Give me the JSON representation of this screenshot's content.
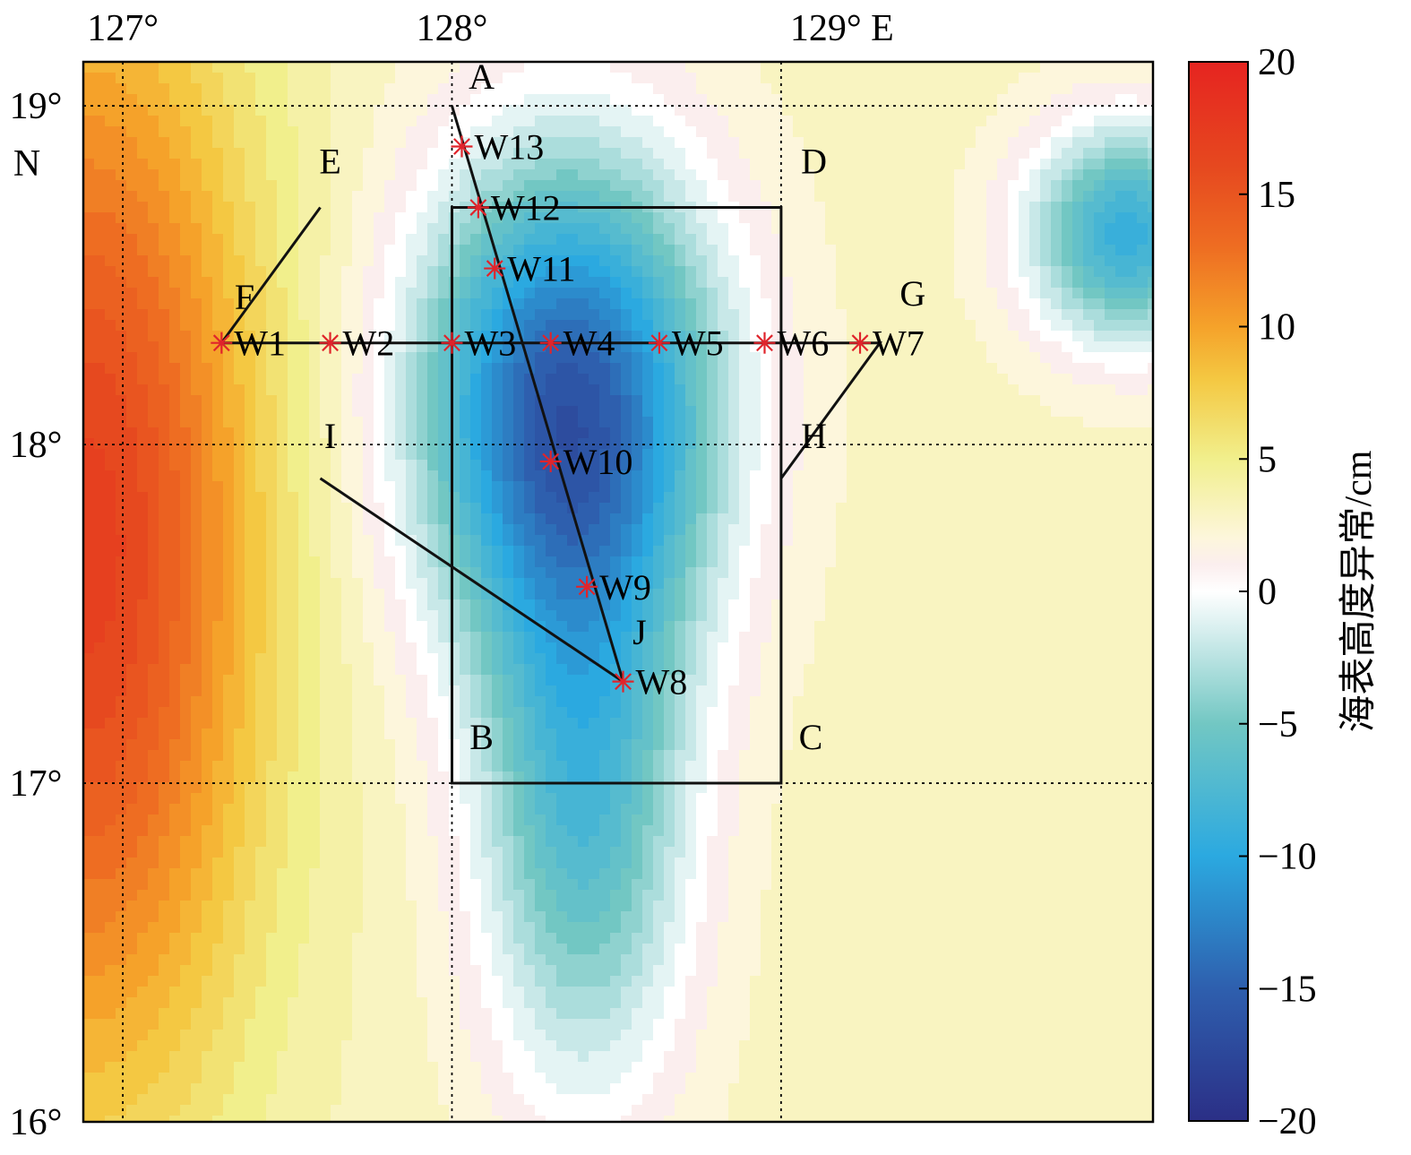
{
  "map": {
    "lon_range": [
      126.88,
      130.13
    ],
    "lat_range": [
      16.0,
      19.13
    ],
    "lon_ticks": [
      {
        "value": 127,
        "label": "127°"
      },
      {
        "value": 128,
        "label": "128°"
      },
      {
        "value": 129,
        "label": "129° E"
      }
    ],
    "lat_ticks": [
      {
        "value": 16,
        "label": "16°"
      },
      {
        "value": 17,
        "label": "17°"
      },
      {
        "value": 18,
        "label": "18°"
      },
      {
        "value": 19,
        "label": "19°"
      }
    ],
    "lat_hemisphere_label": "N",
    "grid": "dotted",
    "field": {
      "variable": "sea surface height anomaly",
      "units": "cm",
      "background_value": 3,
      "features": [
        {
          "kind": "low",
          "lon": 128.35,
          "lat": 18.12,
          "amplitude": -18,
          "sx": 0.45,
          "sy": 0.72
        },
        {
          "kind": "low",
          "lon": 128.4,
          "lat": 16.95,
          "amplitude": -10,
          "sx": 0.32,
          "sy": 0.85
        },
        {
          "kind": "low",
          "lon": 130.05,
          "lat": 18.62,
          "amplitude": -12,
          "sx": 0.3,
          "sy": 0.32
        },
        {
          "kind": "high",
          "lon": 126.9,
          "lat": 17.7,
          "amplitude": 14,
          "sx": 0.5,
          "sy": 1.6
        }
      ]
    },
    "stations": [
      {
        "name": "W1",
        "lon": 127.3,
        "lat": 18.3
      },
      {
        "name": "W2",
        "lon": 127.63,
        "lat": 18.3
      },
      {
        "name": "W3",
        "lon": 128.0,
        "lat": 18.3
      },
      {
        "name": "W4",
        "lon": 128.3,
        "lat": 18.3
      },
      {
        "name": "W5",
        "lon": 128.63,
        "lat": 18.3
      },
      {
        "name": "W6",
        "lon": 128.95,
        "lat": 18.3
      },
      {
        "name": "W7",
        "lon": 129.24,
        "lat": 18.3
      },
      {
        "name": "W8",
        "lon": 128.52,
        "lat": 17.3
      },
      {
        "name": "W9",
        "lon": 128.41,
        "lat": 17.58
      },
      {
        "name": "W10",
        "lon": 128.3,
        "lat": 17.95
      },
      {
        "name": "W11",
        "lon": 128.13,
        "lat": 18.52
      },
      {
        "name": "W12",
        "lon": 128.08,
        "lat": 18.7
      },
      {
        "name": "W13",
        "lon": 128.03,
        "lat": 18.88
      }
    ],
    "boxes": [
      {
        "name": "ABCD",
        "corners": [
          [
            128.0,
            18.7
          ],
          [
            128.0,
            17.0
          ],
          [
            129.0,
            17.0
          ],
          [
            129.0,
            18.7
          ]
        ]
      },
      {
        "name": "EFGH",
        "corners": [
          [
            127.6,
            18.7
          ],
          [
            127.3,
            18.3
          ],
          [
            129.3,
            18.3
          ],
          [
            129.0,
            17.9
          ]
        ]
      },
      {
        "name": "IJ",
        "corners": [
          [
            127.6,
            17.9
          ],
          [
            128.52,
            17.3
          ]
        ]
      }
    ],
    "section_line": {
      "from": [
        128.0,
        19.0
      ],
      "to": [
        128.52,
        17.3
      ]
    },
    "point_labels": [
      {
        "text": "A",
        "lon": 128.09,
        "lat": 19.05
      },
      {
        "text": "B",
        "lon": 128.09,
        "lat": 17.1
      },
      {
        "text": "C",
        "lon": 129.09,
        "lat": 17.1
      },
      {
        "text": "D",
        "lon": 129.1,
        "lat": 18.8
      },
      {
        "text": "E",
        "lon": 127.63,
        "lat": 18.8
      },
      {
        "text": "F",
        "lon": 127.37,
        "lat": 18.4
      },
      {
        "text": "G",
        "lon": 129.4,
        "lat": 18.41
      },
      {
        "text": "H",
        "lon": 129.1,
        "lat": 17.99
      },
      {
        "text": "I",
        "lon": 127.63,
        "lat": 17.99
      },
      {
        "text": "J",
        "lon": 128.57,
        "lat": 17.41
      }
    ],
    "colors": {
      "station_marker": "#e0242b",
      "lines": "#111111"
    }
  },
  "colorbar": {
    "title": "海表高度异常/cm",
    "min": -20,
    "max": 20,
    "ticks": [
      {
        "value": 20,
        "label": "20"
      },
      {
        "value": 15,
        "label": "15"
      },
      {
        "value": 10,
        "label": "10"
      },
      {
        "value": 5,
        "label": "5"
      },
      {
        "value": 0,
        "label": "0"
      },
      {
        "value": -5,
        "label": "−5"
      },
      {
        "value": -10,
        "label": "−10"
      },
      {
        "value": -15,
        "label": "−15"
      },
      {
        "value": -20,
        "label": "−20"
      }
    ],
    "color_stops": [
      {
        "value": -20,
        "color": "#2b2f86"
      },
      {
        "value": -15,
        "color": "#2e5fae"
      },
      {
        "value": -10,
        "color": "#2ba9e0"
      },
      {
        "value": -5,
        "color": "#72c7c3"
      },
      {
        "value": -1.5,
        "color": "#d6eeee"
      },
      {
        "value": 0,
        "color": "#ffffff"
      },
      {
        "value": 1,
        "color": "#fbeeee"
      },
      {
        "value": 2,
        "color": "#fdf6dc"
      },
      {
        "value": 5,
        "color": "#f1ef8c"
      },
      {
        "value": 8,
        "color": "#f4c842"
      },
      {
        "value": 10,
        "color": "#f5a22a"
      },
      {
        "value": 13,
        "color": "#ee6d22"
      },
      {
        "value": 16,
        "color": "#e6491f"
      },
      {
        "value": 20,
        "color": "#e62420"
      }
    ]
  }
}
